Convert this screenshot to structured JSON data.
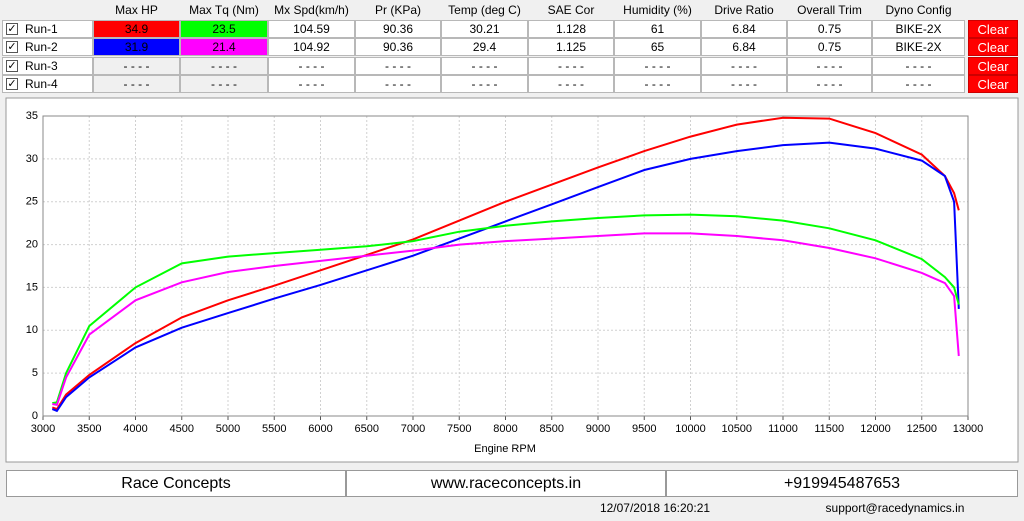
{
  "runs_table": {
    "headers": [
      "Max HP",
      "Max Tq (Nm)",
      "Mx Spd(km/h)",
      "Pr (KPa)",
      "Temp (deg C)",
      "SAE Cor",
      "Humidity (%)",
      "Drive Ratio",
      "Overall Trim",
      "Dyno Config"
    ],
    "rows": [
      {
        "label": "Run-1",
        "checked": true,
        "cells": [
          "34.9",
          "23.5",
          "104.59",
          "90.36",
          "30.21",
          "1.128",
          "61",
          "6.84",
          "0.75",
          "BIKE-2X"
        ],
        "action": "Clear"
      },
      {
        "label": "Run-2",
        "checked": true,
        "cells": [
          "31.9",
          "21.4",
          "104.92",
          "90.36",
          "29.4",
          "1.125",
          "65",
          "6.84",
          "0.75",
          "BIKE-2X"
        ],
        "action": "Clear"
      },
      {
        "label": "Run-3",
        "checked": true,
        "cells": [
          "- - - -",
          "- - - -",
          "- - - -",
          "- - - -",
          "- - - -",
          "- - - -",
          "- - - -",
          "- - - -",
          "- - - -",
          "- - - -"
        ],
        "action": "Clear"
      },
      {
        "label": "Run-4",
        "checked": true,
        "cells": [
          "- - - -",
          "- - - -",
          "- - - -",
          "- - - -",
          "- - - -",
          "- - - -",
          "- - - -",
          "- - - -",
          "- - - -",
          "- - - -"
        ],
        "action": "Clear"
      }
    ]
  },
  "chart_data": {
    "type": "line",
    "x_label": "Engine RPM",
    "x": [
      3100,
      3150,
      3250,
      3500,
      4000,
      4500,
      5000,
      5500,
      6000,
      6500,
      7000,
      7500,
      8000,
      8500,
      9000,
      9500,
      10000,
      10500,
      11000,
      11500,
      12000,
      12500,
      12750,
      12850,
      12900
    ],
    "series": [
      {
        "color": "#ff0000",
        "values": [
          1.0,
          0.8,
          2.5,
          4.8,
          8.5,
          11.5,
          13.5,
          15.2,
          17,
          18.8,
          20.6,
          22.8,
          25,
          27,
          29,
          30.9,
          32.6,
          34,
          34.8,
          34.7,
          33,
          30.5,
          28,
          26,
          24
        ]
      },
      {
        "color": "#0000ff",
        "values": [
          0.8,
          0.6,
          2.2,
          4.5,
          8,
          10.3,
          12,
          13.7,
          15.3,
          17,
          18.7,
          20.7,
          22.7,
          24.7,
          26.7,
          28.7,
          30,
          30.9,
          31.6,
          31.9,
          31.2,
          29.8,
          28,
          25,
          12.5
        ]
      },
      {
        "color": "#00ff00",
        "values": [
          1.5,
          1.6,
          5,
          10.5,
          15,
          17.8,
          18.6,
          19,
          19.4,
          19.8,
          20.4,
          21.5,
          22.2,
          22.7,
          23.1,
          23.4,
          23.5,
          23.3,
          22.8,
          21.9,
          20.5,
          18.3,
          16.2,
          15,
          13
        ]
      },
      {
        "color": "#ff00ff",
        "values": [
          1.4,
          1.3,
          4.5,
          9.5,
          13.5,
          15.6,
          16.8,
          17.5,
          18.1,
          18.7,
          19.3,
          20,
          20.4,
          20.7,
          21,
          21.3,
          21.3,
          21,
          20.5,
          19.6,
          18.4,
          16.7,
          15.5,
          14,
          7
        ]
      }
    ],
    "xlim": [
      3000,
      13000
    ],
    "xticks": [
      3000,
      3500,
      4000,
      4500,
      5000,
      5500,
      6000,
      6500,
      7000,
      7500,
      8000,
      8500,
      9000,
      9500,
      10000,
      10500,
      11000,
      11500,
      12000,
      12500,
      13000
    ],
    "ylim": [
      0,
      35
    ],
    "yticks": [
      0,
      5,
      10,
      15,
      20,
      25,
      30,
      35
    ],
    "grid": true
  },
  "footer": {
    "company": "Race Concepts",
    "website": "www.raceconcepts.in",
    "phone": "+919945487653",
    "timestamp": "12/07/2018 16:20:21",
    "email": "support@racedynamics.in"
  }
}
